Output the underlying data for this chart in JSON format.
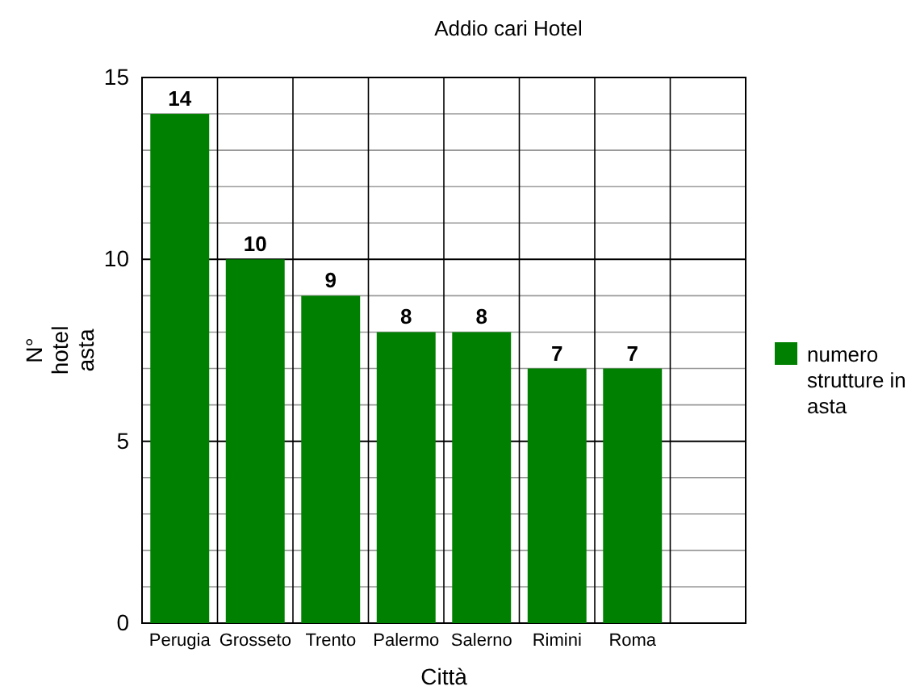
{
  "chart_data": {
    "type": "bar",
    "title": "Addio cari Hotel",
    "xlabel": "Città",
    "ylabel": "N° hotel asta",
    "categories": [
      "Perugia",
      "Grosseto",
      "Trento",
      "Palermo",
      "Salerno",
      "Rimini",
      "Roma",
      null
    ],
    "series": [
      {
        "name": "numero strutture in asta",
        "color": "#008000",
        "values": [
          14,
          10,
          9,
          8,
          8,
          7,
          7,
          null
        ]
      }
    ],
    "ylim": [
      0,
      15
    ],
    "yticks": [
      0,
      {
        "value": 1,
        "label": null
      },
      {
        "value": 2,
        "label": null
      },
      {
        "value": 3,
        "label": null
      },
      {
        "value": 4,
        "label": null
      },
      5,
      {
        "value": 6,
        "label": null
      },
      {
        "value": 7,
        "label": null
      },
      {
        "value": 8,
        "label": null
      },
      {
        "value": 9,
        "label": null
      },
      10,
      {
        "value": 11,
        "label": null
      },
      {
        "value": 12,
        "label": null
      },
      {
        "value": 13,
        "label": null
      },
      {
        "value": 14,
        "label": null
      },
      15
    ],
    "grid": true,
    "legend": "right",
    "data_labels": true
  }
}
